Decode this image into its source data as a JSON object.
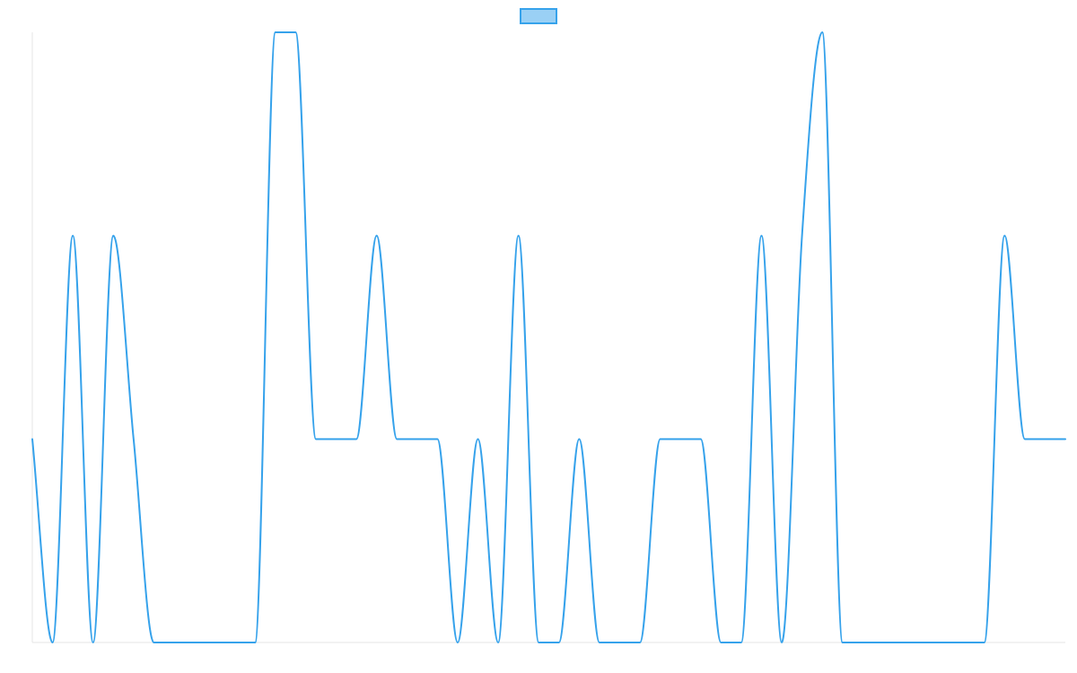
{
  "chart_data": {
    "type": "line",
    "title": "",
    "xlabel": "",
    "ylabel": "",
    "x": [
      0,
      1,
      2,
      3,
      4,
      5,
      6,
      7,
      8,
      9,
      10,
      11,
      12,
      13,
      14,
      15,
      16,
      17,
      18,
      19,
      20,
      21,
      22,
      23,
      24,
      25,
      26,
      27,
      28,
      29,
      30,
      31,
      32,
      33,
      34,
      35,
      36,
      37,
      38,
      39,
      40,
      41,
      42,
      43,
      44,
      45,
      46,
      47,
      48,
      49,
      50,
      51
    ],
    "ylim": [
      0,
      3
    ],
    "grid": false,
    "legend": {
      "position": "top-center"
    },
    "series": [
      {
        "color": "#36a2eb",
        "fill": "#9ad0f5",
        "values": [
          1,
          0,
          2,
          0,
          2,
          1,
          0,
          0,
          0,
          0,
          0,
          0,
          3,
          3,
          1,
          1,
          1,
          2,
          1,
          1,
          1,
          0,
          1,
          0,
          2,
          0,
          0,
          1,
          0,
          0,
          0,
          1,
          1,
          1,
          0,
          0,
          2,
          0,
          2,
          3,
          0,
          0,
          0,
          0,
          0,
          0,
          0,
          0,
          2,
          1,
          1,
          1
        ]
      }
    ]
  }
}
